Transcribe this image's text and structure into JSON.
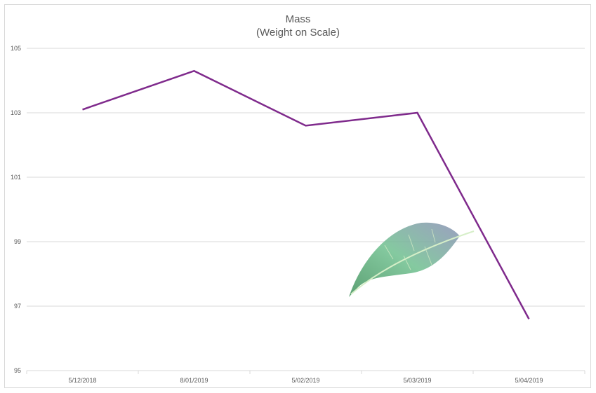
{
  "chart_data": {
    "type": "line",
    "title": "Mass",
    "subtitle": "(Weight on Scale)",
    "xlabel": "",
    "ylabel": "",
    "categories": [
      "5/12/2018",
      "8/01/2019",
      "5/02/2019",
      "5/03/2019",
      "5/04/2019"
    ],
    "series": [
      {
        "values": [
          103.1,
          104.3,
          102.6,
          103.0,
          96.6
        ],
        "color": "#7f2a8c"
      }
    ],
    "ylim": [
      95,
      105
    ],
    "yticks": [
      95,
      97,
      99,
      101,
      103,
      105
    ],
    "grid": true,
    "legend": "none"
  },
  "decoration": {
    "image": "green-leaf-watercolor"
  },
  "colors": {
    "gridline": "#d9d9d9",
    "axis_text": "#595959",
    "line": "#7f2a8c"
  }
}
